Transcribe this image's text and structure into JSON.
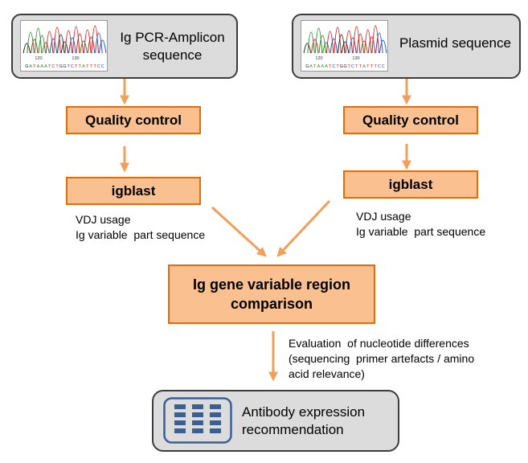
{
  "colors": {
    "arrow": "#f0a05a",
    "orange_fill": "#fac090",
    "orange_border": "#e46c0a",
    "grey_fill": "#dcdcdc",
    "grey_border": "#3c3c3c",
    "icon_blue": "#3a5f95"
  },
  "left": {
    "source_title": "Ig PCR-Amplicon sequence",
    "quality": "Quality control",
    "igblast": "igblast",
    "notes": [
      "VDJ usage",
      "Ig variable  part sequence"
    ]
  },
  "right": {
    "source_title": "Plasmid sequence",
    "quality": "Quality control",
    "igblast": "igblast",
    "notes": [
      "VDJ usage",
      "Ig variable  part sequence"
    ]
  },
  "chromatogram": {
    "tick_labels": [
      "120",
      "130"
    ],
    "bases": "GATAAATCTGGTCTTATTTCC",
    "base_colors": {
      "A": "#2e8b2e",
      "C": "#1f4fd0",
      "G": "#222222",
      "T": "#d01f1f"
    }
  },
  "comparison": {
    "title": "Ig gene variable region comparison"
  },
  "evaluation_notes": [
    "Evaluation  of nucleotide differences",
    "(sequencing  primer artefacts / amino",
    "acid relevance)"
  ],
  "result": {
    "title": "Antibody expression recommendation",
    "icon": "plate-grid-icon"
  }
}
